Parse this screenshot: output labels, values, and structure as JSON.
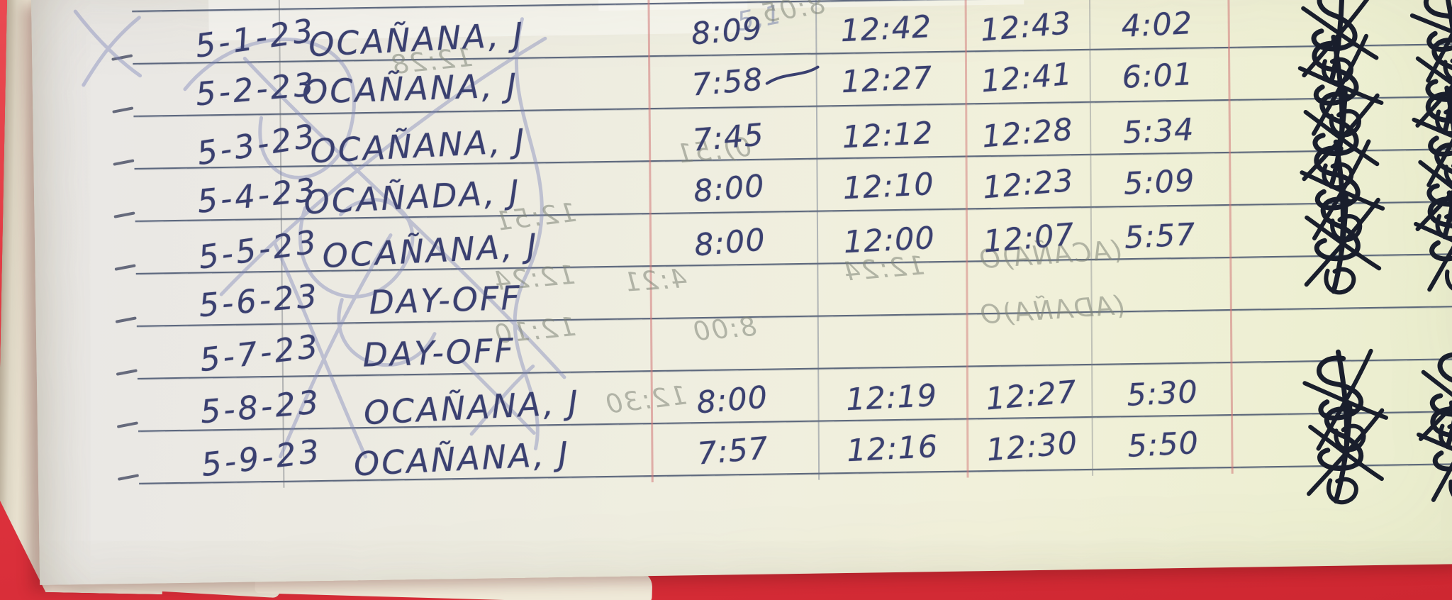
{
  "document": {
    "kind": "handwritten daily time record page in red-covered notebook",
    "ink_color": "#3a4070",
    "cover_color": "#e23a43",
    "signature_ink_color": "#191e2c",
    "day_off_text": "DAY-OFF",
    "columns": [
      "date",
      "name",
      "time-in-am",
      "time-out-noon",
      "time-in-noon",
      "time-out-pm",
      "signature"
    ],
    "rows": [
      {
        "date": "5-1-23",
        "name": "OCAÑANA, J",
        "am_in": "8:09",
        "noon_out": "12:42",
        "noon_in": "12:43",
        "pm_out": "4:02",
        "signed": true
      },
      {
        "date": "5-2-23",
        "name": "OCAÑANA, J",
        "am_in": "7:58",
        "noon_out": "12:27",
        "noon_in": "12:41",
        "pm_out": "6:01",
        "signed": true
      },
      {
        "date": "5-3-23",
        "name": "OCAÑANA, J",
        "am_in": "7:45",
        "noon_out": "12:12",
        "noon_in": "12:28",
        "pm_out": "5:34",
        "signed": true
      },
      {
        "date": "5-4-23",
        "name": "OCAÑADA, J",
        "am_in": "8:00",
        "noon_out": "12:10",
        "noon_in": "12:23",
        "pm_out": "5:09",
        "signed": true
      },
      {
        "date": "5-5-23",
        "name": "OCAÑANA, J",
        "am_in": "8:00",
        "noon_out": "12:00",
        "noon_in": "12:07",
        "pm_out": "5:57",
        "signed": true
      },
      {
        "date": "5-6-23",
        "name": "DAY-OFF",
        "am_in": "",
        "noon_out": "",
        "noon_in": "",
        "pm_out": "",
        "signed": false
      },
      {
        "date": "5-7-23",
        "name": "DAY-OFF",
        "am_in": "",
        "noon_out": "",
        "noon_in": "",
        "pm_out": "",
        "signed": false
      },
      {
        "date": "5-8-23",
        "name": "OCAÑANA, J",
        "am_in": "8:00",
        "noon_out": "12:19",
        "noon_in": "12:27",
        "pm_out": "5:30",
        "signed": true
      },
      {
        "date": "5-9-23",
        "name": "OCAÑANA, J",
        "am_in": "7:57",
        "noon_out": "12:16",
        "noon_in": "12:30",
        "pm_out": "5:50",
        "signed": true
      }
    ],
    "bleedthrough_texts": [
      "5,1",
      "12:51",
      "0):51",
      "12:24",
      "4:21",
      "12:24",
      "(ACAÑA)O",
      "12:10",
      "8:00",
      "(ADAÑA)O",
      "12:30",
      "8:05",
      "12:28"
    ]
  }
}
